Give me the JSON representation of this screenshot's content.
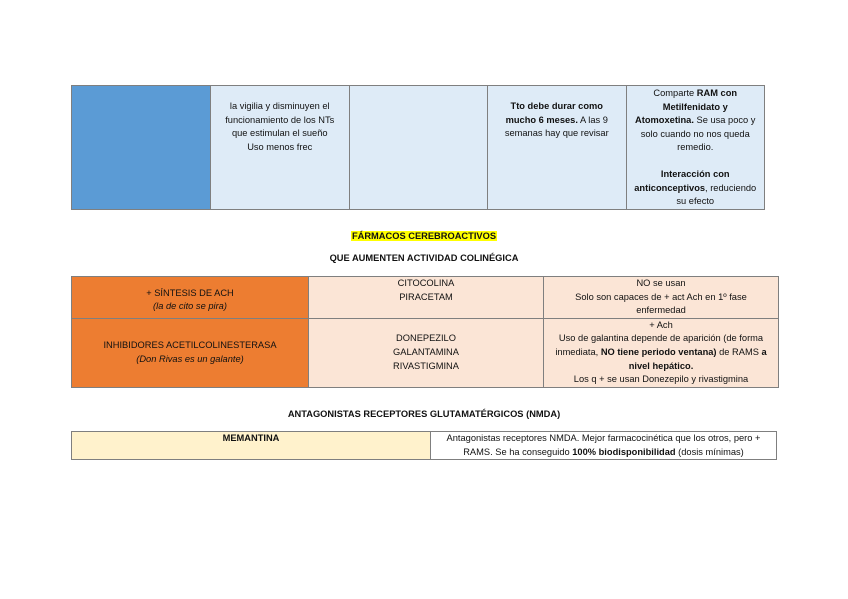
{
  "table1": {
    "col2": [
      "la vigilia y disminuyen el",
      "funcionamiento de los NTs",
      "que estimulan el sueño",
      "Uso menos frec"
    ],
    "col4": {
      "bold": "Tto debe durar como mucho 6 meses.",
      "rest": " A las 9 semanas hay que revisar"
    },
    "col5": {
      "l1": "Comparte ",
      "l1b": "RAM con Metilfenidato y Atomoxetina.",
      "l2": " Se usa poco y solo cuando no nos queda remedio.",
      "l3b": "Interacción con anticonceptivos",
      "l3": ", reduciendo su efecto"
    }
  },
  "section_title": "FÁRMACOS CEREBROACTIVOS",
  "subtitle1": "QUE AUMENTEN ACTIVIDAD COLINÉGICA",
  "table2": {
    "rows": [
      {
        "group": "+ SÍNTESIS DE ACH",
        "mnemonic": "(la de cito se pira)",
        "drugs": [
          "CITOCOLINA",
          "PIRACETAM"
        ],
        "notes": [
          "NO se usan",
          "Solo son capaces de + act Ach en 1º fase enfermedad"
        ]
      },
      {
        "group": "INHIBIDORES ACETILCOLINESTERASA",
        "mnemonic": "(Don Rivas es un galante)",
        "drugs": [
          "DONEPEZILO",
          "GALANTAMINA",
          "RIVASTIGMINA"
        ],
        "notes": {
          "a": "+ Ach",
          "b": "Uso de galantina depende de aparición (de forma inmediata, ",
          "b_bold": "NO tiene periodo ventana)",
          "c": " de RAMS ",
          "c_bold": "a nivel hepático.",
          "d": "Los q + se usan Donezepilo y rivastigmina"
        }
      }
    ]
  },
  "subtitle2": "ANTAGONISTAS RECEPTORES GLUTAMATÉRGICOS (NMDA)",
  "table3": {
    "drug": "MEMANTINA",
    "note_a": "Antagonistas receptores NMDA. Mejor farmacocinética que los otros, pero + RAMS. Se ha conseguido ",
    "note_bold": "100% biodisponibilidad",
    "note_b": " (dosis mínimas)"
  },
  "colors": {
    "blue": "#5b9bd5",
    "light_blue": "#deebf7",
    "orange": "#ed7d31",
    "peach": "#fbe5d6",
    "light_yellow": "#fff2cc",
    "highlight": "#ffff00"
  }
}
